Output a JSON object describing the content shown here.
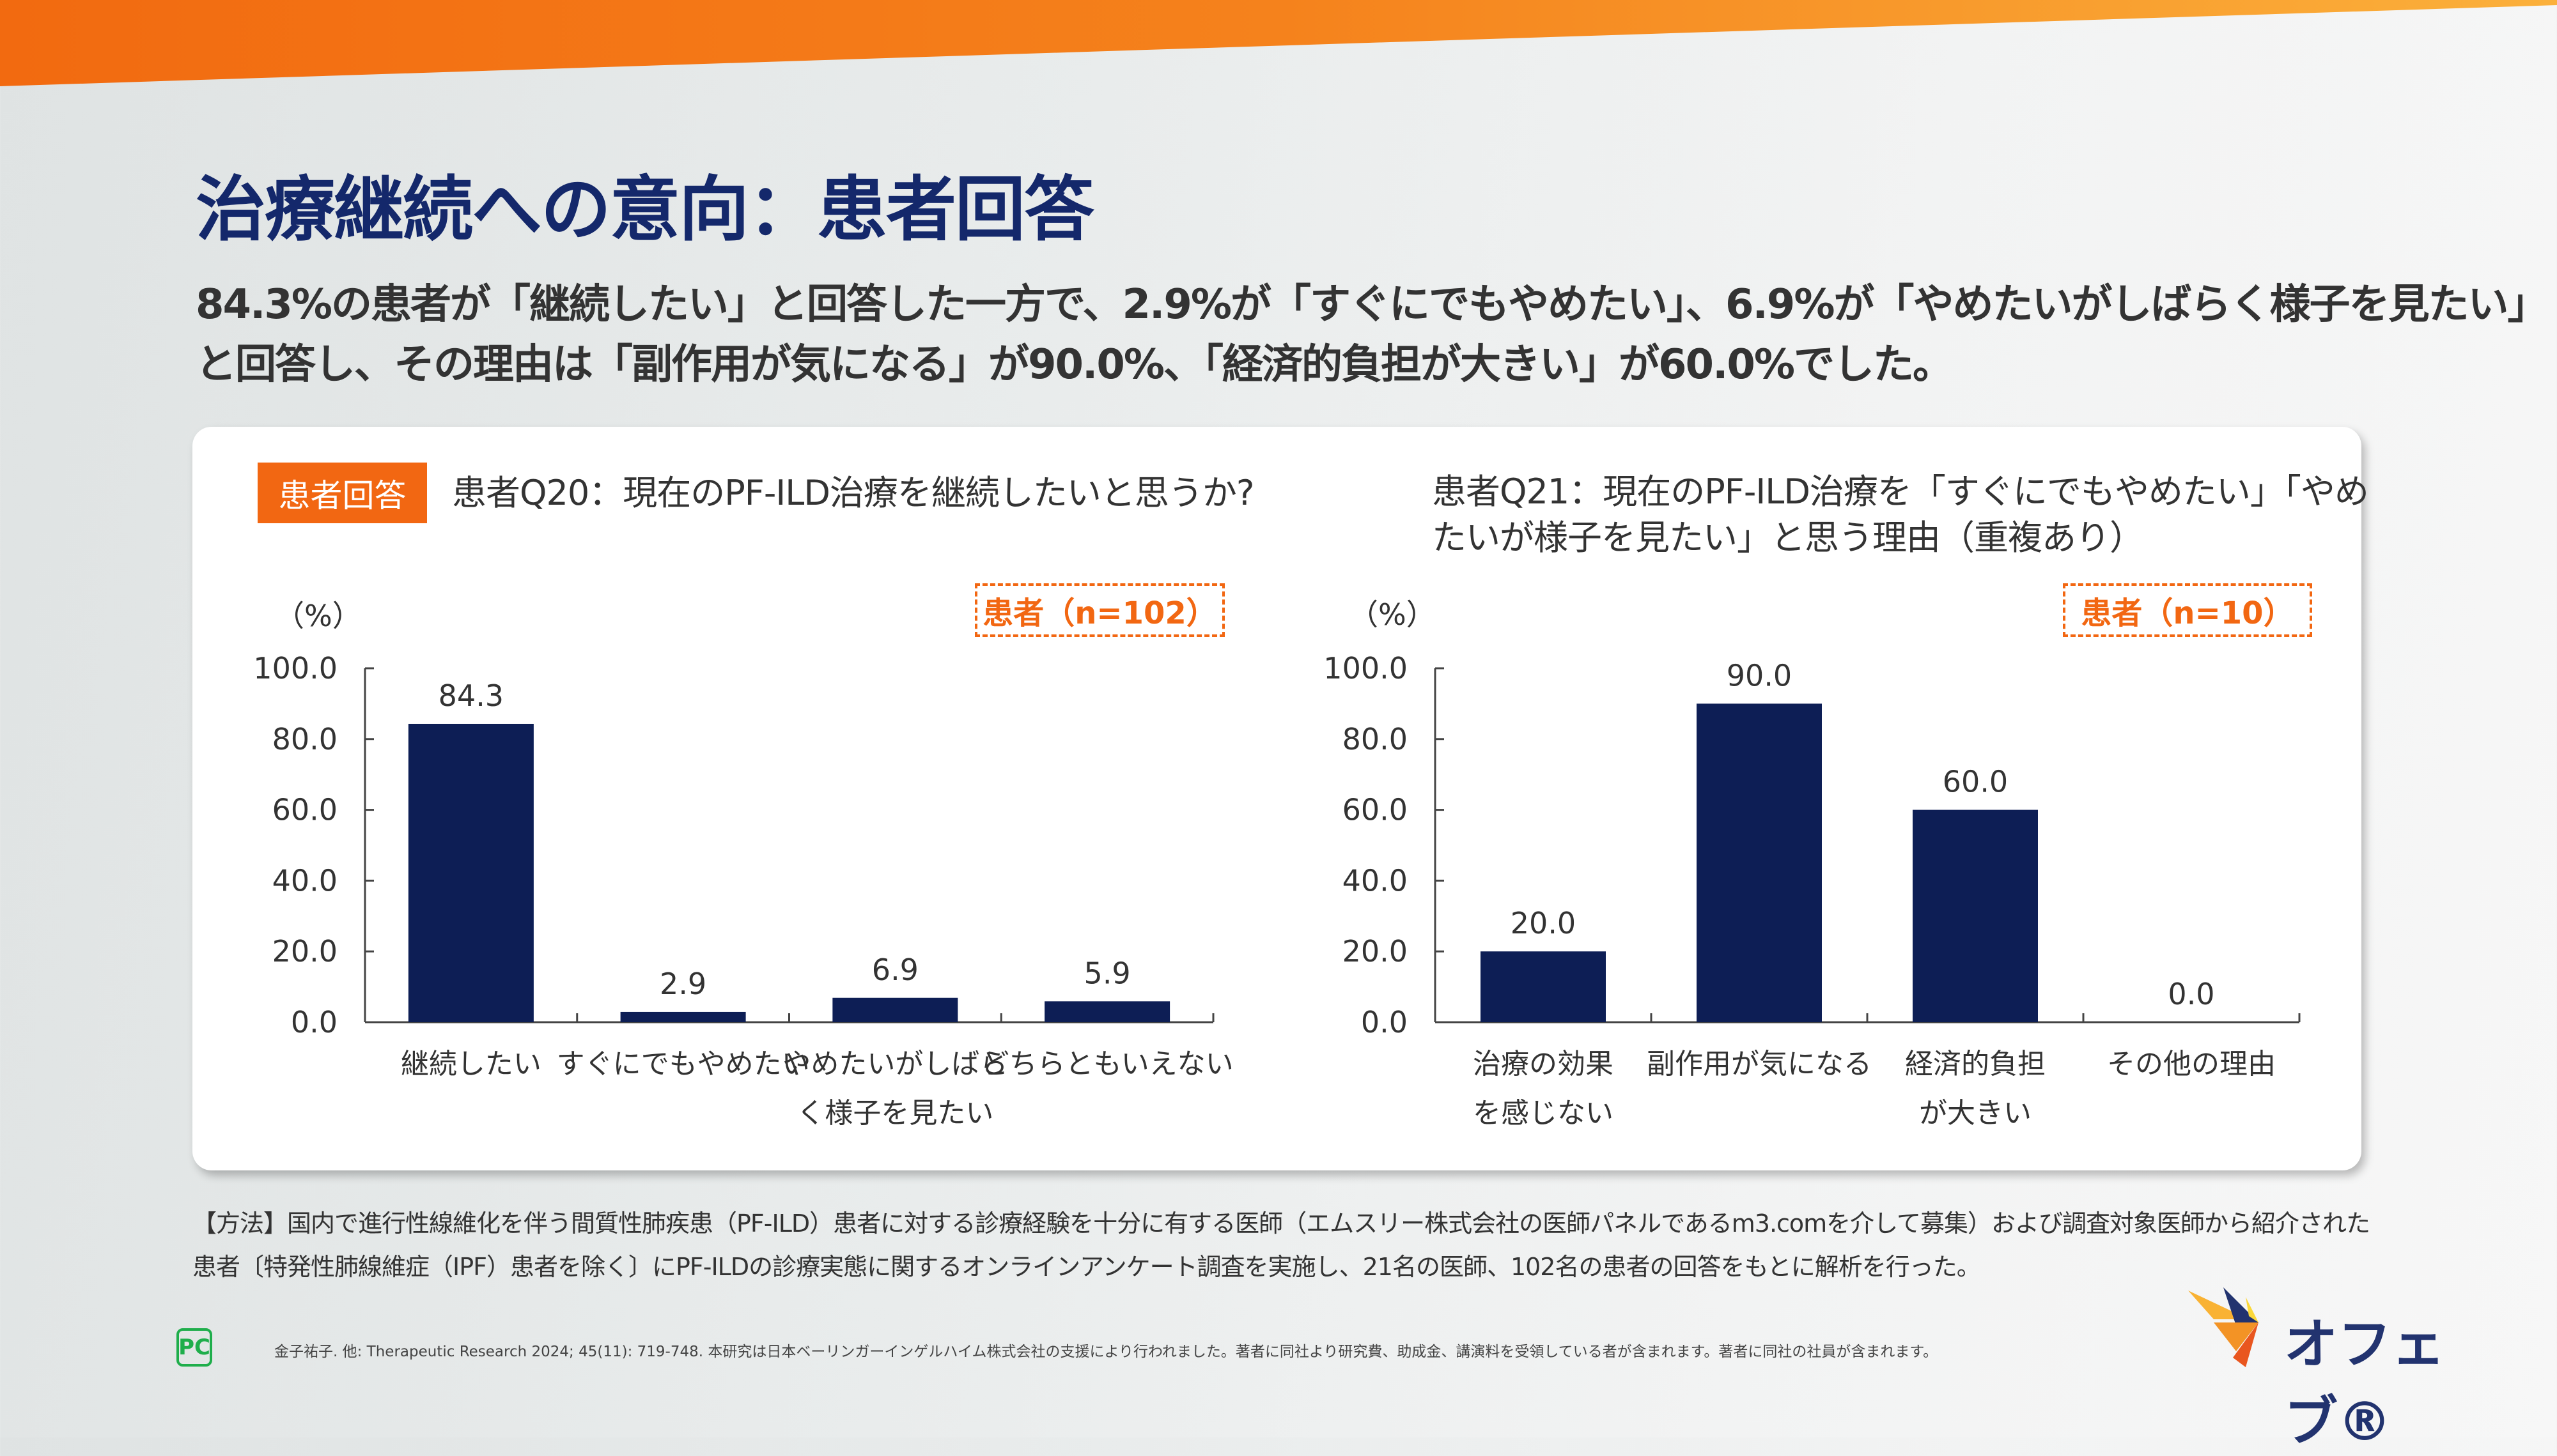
{
  "header": {
    "title": "治療継続への意向：患者回答",
    "summary": [
      "84.3%の患者が「継続したい」と回答した一方で、2.9%が「すぐにでもやめたい」、6.9%が「やめたいがしばらく様子を見たい」",
      "と回答し、その理由は「副作用が気になる」が90.0%、「経済的負担が大きい」が60.0%でした。"
    ]
  },
  "tag": "患者回答",
  "colors": {
    "bar": "#0d1e55",
    "accent": "#f26712"
  },
  "chart_data": [
    {
      "type": "bar",
      "title": "患者Q20：現在のPF-ILD治療を継続したいと思うか?",
      "ylabel": "（%）",
      "ylim": [
        0,
        100
      ],
      "yticks": [
        "0.0",
        "20.0",
        "40.0",
        "60.0",
        "80.0",
        "100.0"
      ],
      "n_label": "患者（n=102）",
      "categories": [
        [
          "継続したい"
        ],
        [
          "すぐにでもやめたい"
        ],
        [
          "やめたいがしばら",
          "く様子を見たい"
        ],
        [
          "どちらともいえない"
        ]
      ],
      "values": [
        84.3,
        2.9,
        6.9,
        5.9
      ],
      "data_labels": [
        "84.3",
        "2.9",
        "6.9",
        "5.9"
      ]
    },
    {
      "type": "bar",
      "title": [
        "患者Q21：現在のPF-ILD治療を「すぐにでもやめたい」「やめ",
        "たいが様子を見たい」と思う理由（重複あり）"
      ],
      "ylabel": "（%）",
      "ylim": [
        0,
        100
      ],
      "yticks": [
        "0.0",
        "20.0",
        "40.0",
        "60.0",
        "80.0",
        "100.0"
      ],
      "n_label": "患者（n=10）",
      "categories": [
        [
          "治療の効果",
          "を感じない"
        ],
        [
          "副作用が気になる"
        ],
        [
          "経済的負担",
          "が大きい"
        ],
        [
          "その他の理由"
        ]
      ],
      "values": [
        20.0,
        90.0,
        60.0,
        0.0
      ],
      "data_labels": [
        "20.0",
        "90.0",
        "60.0",
        "0.0"
      ]
    }
  ],
  "method": [
    "【方法】国内で進行性線維化を伴う間質性肺疾患（PF-ILD）患者に対する診療経験を十分に有する医師（エムスリー株式会社の医師パネルであるm3.comを介して募集）および調査対象医師から紹介された",
    "患者〔特発性肺線維症（IPF）患者を除く〕にPF-ILDの診療実態に関するオンラインアンケート調査を実施し、21名の医師、102名の患者の回答をもとに解析を行った。"
  ],
  "footer": {
    "citation": "金子祐子. 他: Therapeutic Research 2024; 45(11): 719-748.  本研究は日本ベーリンガーインゲルハイム株式会社の支援により行われました。著者に同社より研究費、助成金、講演料を受領している者が含まれます。著者に同社の社員が含まれます。",
    "pc_icon": "PC",
    "logo": "オフェブ®"
  }
}
